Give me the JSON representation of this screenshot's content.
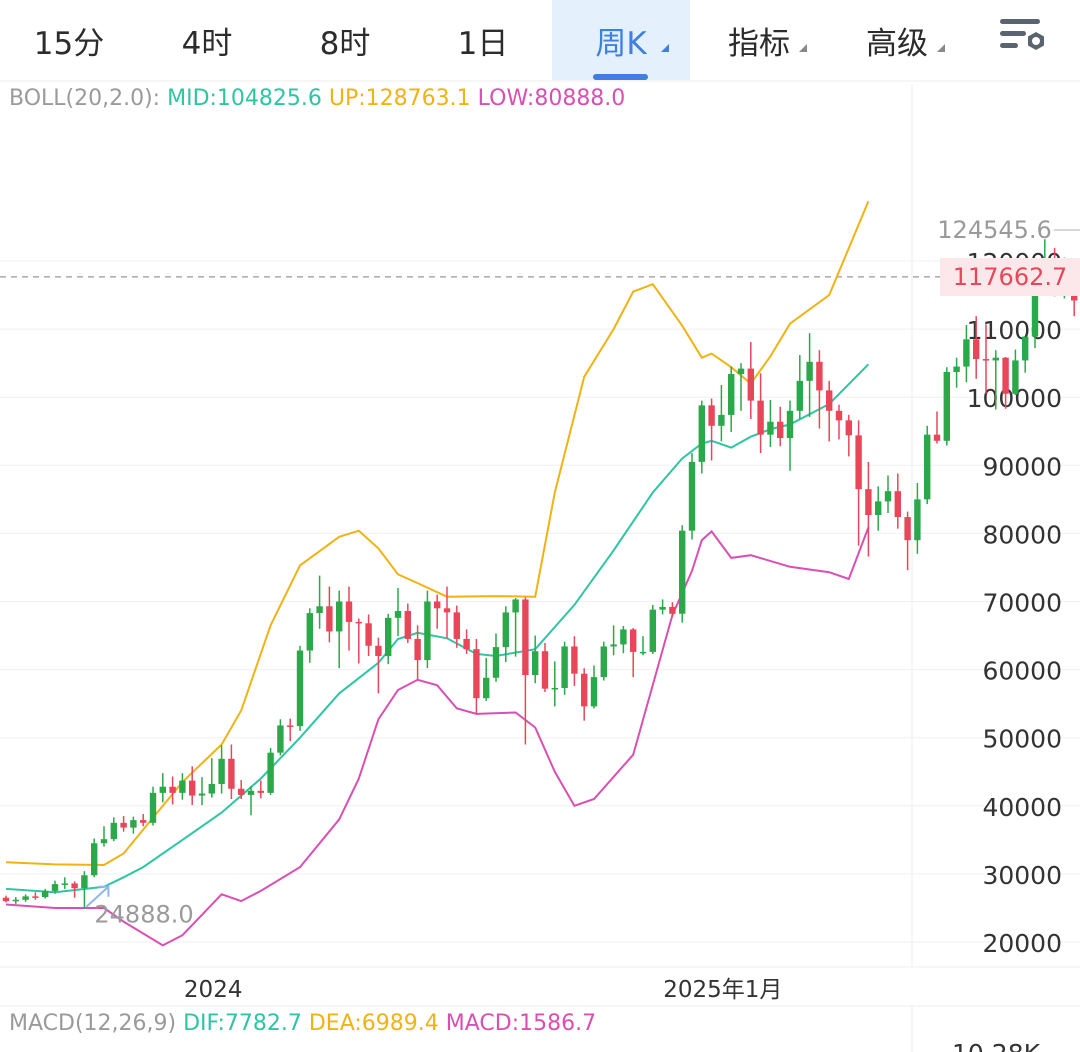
{
  "tabs": [
    {
      "label": "15分",
      "active": false,
      "dropdown": false
    },
    {
      "label": "4时",
      "active": false,
      "dropdown": false
    },
    {
      "label": "8时",
      "active": false,
      "dropdown": false
    },
    {
      "label": "1日",
      "active": false,
      "dropdown": false
    },
    {
      "label": "周K",
      "active": true,
      "dropdown": true
    },
    {
      "label": "指标",
      "active": false,
      "dropdown": true
    },
    {
      "label": "高级",
      "active": false,
      "dropdown": true
    }
  ],
  "settings_icon": "chart-settings-icon",
  "boll_legend": {
    "name": "BOLL(20,2.0):",
    "mid": "MID:104825.6",
    "up": "UP:128763.1",
    "low": "LOW:80888.0"
  },
  "macd_legend": {
    "name": "MACD(12,26,9)",
    "dif": "DIF:7782.7",
    "dea": "DEA:6989.4",
    "macd": "MACD:1586.7"
  },
  "macd_axis_partial": "10.28K",
  "current_price": "117662.7",
  "colors": {
    "up": "#2aa84a",
    "down": "#e8475a",
    "mid": "#2ec5a3",
    "upper": "#f0b311",
    "lower": "#d94fb3",
    "accent": "#3f7fe0"
  },
  "chart_data": {
    "type": "candlestick",
    "timeframe": "weekly",
    "y_ticks": [
      20000,
      30000,
      40000,
      50000,
      60000,
      70000,
      80000,
      90000,
      100000,
      110000,
      120000
    ],
    "y_tick_labels": [
      "20000",
      "30000",
      "40000",
      "50000",
      "60000",
      "70000",
      "80000",
      "90000",
      "100000",
      "110000",
      "120000"
    ],
    "ylim": [
      17000,
      141000
    ],
    "x_labels": [
      {
        "text": "2024",
        "index": 24
      },
      {
        "text": "2025年1月",
        "index": 76
      }
    ],
    "annotations": {
      "high": {
        "text": "124545.6",
        "value": 124545.6
      },
      "low": {
        "text": "24888.0",
        "value": 24888
      }
    },
    "current_price": 117662.7,
    "candles": [
      [
        26500,
        26000,
        26800,
        25800
      ],
      [
        26000,
        26200,
        26600,
        25600
      ],
      [
        26200,
        26700,
        27000,
        25900
      ],
      [
        26700,
        26600,
        27300,
        26200
      ],
      [
        26600,
        27500,
        27800,
        26400
      ],
      [
        27500,
        28500,
        29000,
        27100
      ],
      [
        28500,
        28600,
        29500,
        27800
      ],
      [
        28600,
        27900,
        28900,
        26500
      ],
      [
        27900,
        29800,
        30400,
        24888
      ],
      [
        29800,
        34500,
        35200,
        29500
      ],
      [
        34500,
        35100,
        37000,
        34000
      ],
      [
        35100,
        37500,
        38300,
        34800
      ],
      [
        37500,
        36800,
        38500,
        36200
      ],
      [
        36800,
        37900,
        38400,
        35900
      ],
      [
        37900,
        37500,
        38800,
        37000
      ],
      [
        37500,
        41900,
        42800,
        37100
      ],
      [
        41900,
        42800,
        44800,
        40500
      ],
      [
        42800,
        41900,
        44300,
        40200
      ],
      [
        41900,
        43700,
        44800,
        40900
      ],
      [
        43700,
        41500,
        45800,
        40100
      ],
      [
        41500,
        41800,
        44200,
        40100
      ],
      [
        41800,
        43200,
        47000,
        41200
      ],
      [
        43200,
        46900,
        48900,
        41800
      ],
      [
        46900,
        42500,
        49000,
        41000
      ],
      [
        42500,
        41600,
        43800,
        41000
      ],
      [
        41600,
        42200,
        42900,
        38600
      ],
      [
        42200,
        41900,
        43700,
        41100
      ],
      [
        41900,
        47800,
        48500,
        41600
      ],
      [
        47800,
        51800,
        52700,
        47400
      ],
      [
        51800,
        51700,
        52800,
        49500
      ],
      [
        51700,
        62800,
        63500,
        51000
      ],
      [
        62800,
        68300,
        69000,
        61000
      ],
      [
        68300,
        69300,
        73800,
        66000
      ],
      [
        69300,
        65600,
        72200,
        64000
      ],
      [
        65600,
        70000,
        71600,
        60200
      ],
      [
        70000,
        67000,
        72200,
        62800
      ],
      [
        67000,
        66800,
        67500,
        60900
      ],
      [
        66800,
        63500,
        68100,
        62000
      ],
      [
        63500,
        62000,
        64700,
        56500
      ],
      [
        62000,
        67600,
        68200,
        60800
      ],
      [
        67600,
        68600,
        72000,
        64900
      ],
      [
        68600,
        64500,
        69700,
        63900
      ],
      [
        64500,
        61400,
        66500,
        58600
      ],
      [
        61400,
        70000,
        71600,
        60200
      ],
      [
        70000,
        69000,
        71000,
        66000
      ],
      [
        69000,
        68400,
        72200,
        64600
      ],
      [
        68400,
        64500,
        69400,
        63200
      ],
      [
        64500,
        63000,
        65900,
        62300
      ],
      [
        63000,
        55800,
        64500,
        53500
      ],
      [
        55800,
        58800,
        61700,
        55400
      ],
      [
        58800,
        63300,
        65300,
        58200
      ],
      [
        63300,
        68400,
        69300,
        61100
      ],
      [
        68400,
        70300,
        70500,
        61900
      ],
      [
        70300,
        59200,
        70600,
        49000
      ],
      [
        59200,
        62700,
        65000,
        58000
      ],
      [
        62700,
        57200,
        63900,
        56700
      ],
      [
        57200,
        57300,
        61200,
        54600
      ],
      [
        57300,
        63400,
        64100,
        56300
      ],
      [
        63400,
        59400,
        64900,
        57600
      ],
      [
        59400,
        54600,
        60200,
        52500
      ],
      [
        54600,
        58900,
        60600,
        54300
      ],
      [
        58900,
        63400,
        64100,
        58400
      ],
      [
        63400,
        63700,
        66500,
        62100
      ],
      [
        63700,
        65900,
        66400,
        62400
      ],
      [
        65900,
        62600,
        66100,
        58900
      ],
      [
        62600,
        62600,
        64900,
        62100
      ],
      [
        62600,
        68800,
        69500,
        62300
      ],
      [
        68800,
        69200,
        70300,
        68100
      ],
      [
        69200,
        68200,
        69900,
        67800
      ],
      [
        68200,
        80400,
        81200,
        66900
      ],
      [
        80400,
        90500,
        91800,
        79100
      ],
      [
        90500,
        98800,
        99500,
        88800
      ],
      [
        98800,
        95800,
        99800,
        90700
      ],
      [
        95800,
        97400,
        101800,
        93500
      ],
      [
        97400,
        103400,
        104500,
        94900
      ],
      [
        103400,
        104200,
        105000,
        98000
      ],
      [
        104200,
        99500,
        108100,
        96800
      ],
      [
        99500,
        94500,
        103500,
        91800
      ],
      [
        94500,
        96400,
        99600,
        92700
      ],
      [
        96400,
        94000,
        98600,
        92800
      ],
      [
        94000,
        98000,
        99500,
        89200
      ],
      [
        98000,
        102400,
        106200,
        96800
      ],
      [
        102400,
        105200,
        109400,
        97100
      ],
      [
        105200,
        101000,
        106900,
        95400
      ],
      [
        101000,
        98000,
        102400,
        93500
      ],
      [
        98000,
        96600,
        98900,
        93800
      ],
      [
        96600,
        94400,
        97400,
        91300
      ],
      [
        94400,
        86500,
        96600,
        78200
      ],
      [
        86500,
        82700,
        90500,
        76600
      ],
      [
        82700,
        84700,
        86900,
        80400
      ],
      [
        84700,
        86200,
        88500,
        83000
      ],
      [
        86200,
        82400,
        88800,
        80700
      ],
      [
        82400,
        79000,
        83200,
        74600
      ],
      [
        79000,
        85000,
        87400,
        77000
      ],
      [
        85000,
        94500,
        95800,
        84300
      ],
      [
        94500,
        93600,
        97900,
        93200
      ],
      [
        93600,
        103700,
        104400,
        92900
      ],
      [
        103700,
        104500,
        105800,
        101400
      ],
      [
        104500,
        108500,
        110600,
        102200
      ],
      [
        108500,
        105600,
        111900,
        102700
      ],
      [
        105600,
        105400,
        110700,
        100500
      ],
      [
        105400,
        105800,
        106900,
        98200
      ],
      [
        105800,
        100500,
        105900,
        98300
      ],
      [
        100500,
        105400,
        107000,
        100300
      ],
      [
        105400,
        108900,
        108900,
        103600
      ],
      [
        108900,
        117500,
        118900,
        107200
      ],
      [
        117500,
        119900,
        123200,
        116000
      ],
      [
        119900,
        117600,
        121900,
        114800
      ],
      [
        117600,
        119200,
        120500,
        114500
      ],
      [
        119200,
        114200,
        120000,
        111900
      ],
      [
        114200,
        119300,
        120000,
        112600
      ],
      [
        119300,
        117662.7,
        124545.6,
        116500
      ]
    ],
    "boll": {
      "mid": [
        [
          0,
          27800
        ],
        [
          5,
          27300
        ],
        [
          10,
          28100
        ],
        [
          12,
          29500
        ],
        [
          14,
          31000
        ],
        [
          18,
          35000
        ],
        [
          22,
          39000
        ],
        [
          26,
          44000
        ],
        [
          30,
          50000
        ],
        [
          34,
          56500
        ],
        [
          38,
          61000
        ],
        [
          40,
          64500
        ],
        [
          42,
          65400
        ],
        [
          45,
          64600
        ],
        [
          48,
          62300
        ],
        [
          50,
          62000
        ],
        [
          54,
          63000
        ],
        [
          58,
          69500
        ],
        [
          62,
          77500
        ],
        [
          66,
          86000
        ],
        [
          69,
          91000
        ],
        [
          71,
          93200
        ],
        [
          72,
          93600
        ],
        [
          74,
          92600
        ],
        [
          76,
          94200
        ],
        [
          78,
          95300
        ],
        [
          80,
          96000
        ],
        [
          84,
          99000
        ],
        [
          88,
          104825.6
        ]
      ],
      "upper": [
        [
          0,
          31700
        ],
        [
          5,
          31400
        ],
        [
          10,
          31300
        ],
        [
          12,
          33000
        ],
        [
          14,
          36500
        ],
        [
          18,
          43500
        ],
        [
          22,
          49000
        ],
        [
          24,
          54000
        ],
        [
          27,
          66500
        ],
        [
          30,
          75300
        ],
        [
          34,
          79500
        ],
        [
          36,
          80400
        ],
        [
          38,
          77800
        ],
        [
          40,
          74000
        ],
        [
          42,
          72700
        ],
        [
          45,
          70700
        ],
        [
          50,
          70800
        ],
        [
          54,
          70700
        ],
        [
          56,
          86000
        ],
        [
          59,
          103000
        ],
        [
          62,
          110000
        ],
        [
          64,
          115500
        ],
        [
          66,
          116600
        ],
        [
          69,
          110500
        ],
        [
          71,
          105800
        ],
        [
          72,
          106400
        ],
        [
          74,
          104400
        ],
        [
          76,
          102000
        ],
        [
          78,
          106000
        ],
        [
          80,
          110800
        ],
        [
          84,
          115000
        ],
        [
          88,
          128763.1
        ]
      ],
      "lower": [
        [
          0,
          25500
        ],
        [
          5,
          25000
        ],
        [
          10,
          25000
        ],
        [
          12,
          23000
        ],
        [
          16,
          19500
        ],
        [
          18,
          21000
        ],
        [
          20,
          24000
        ],
        [
          22,
          27000
        ],
        [
          24,
          26000
        ],
        [
          26,
          27500
        ],
        [
          30,
          31000
        ],
        [
          34,
          38000
        ],
        [
          36,
          44000
        ],
        [
          38,
          52700
        ],
        [
          40,
          57000
        ],
        [
          42,
          58500
        ],
        [
          44,
          57700
        ],
        [
          46,
          54300
        ],
        [
          48,
          53500
        ],
        [
          52,
          53700
        ],
        [
          54,
          51500
        ],
        [
          56,
          45000
        ],
        [
          58,
          40000
        ],
        [
          60,
          41000
        ],
        [
          64,
          47500
        ],
        [
          68,
          68000
        ],
        [
          70,
          74500
        ],
        [
          71,
          79000
        ],
        [
          72,
          80300
        ],
        [
          74,
          76400
        ],
        [
          76,
          76800
        ],
        [
          80,
          75100
        ],
        [
          84,
          74300
        ],
        [
          86,
          73300
        ],
        [
          88,
          80888.0
        ]
      ]
    }
  }
}
